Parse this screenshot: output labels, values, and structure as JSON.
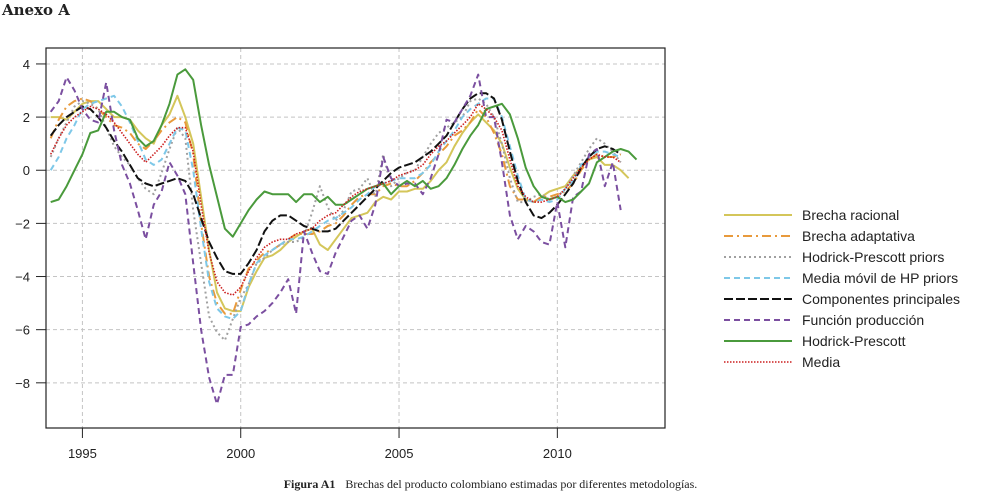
{
  "header": {
    "annex_title": "Anexo A"
  },
  "caption": {
    "label": "Figura A1",
    "text": "Brechas del producto colombiano estimadas por diferentes metodologías."
  },
  "chart_data": {
    "type": "line",
    "title": "",
    "xlabel": "",
    "ylabel": "",
    "xlim": [
      1993.85,
      2013.4
    ],
    "ylim": [
      -9.7,
      4.6
    ],
    "x_ticks": [
      1995,
      2000,
      2005,
      2010
    ],
    "x_tick_labels": [
      "1995",
      "2000",
      "2005",
      "2010"
    ],
    "y_ticks": [
      4,
      2,
      0,
      -2,
      -4,
      -6,
      -8
    ],
    "y_tick_labels": [
      "4",
      "2",
      "0",
      "−2",
      "−4",
      "−6",
      "−8"
    ],
    "grid": true,
    "legend_position": "right",
    "x_start": 1994.0,
    "x_step": 0.25,
    "series": [
      {
        "name": "Brecha racional",
        "color": "#d4c65a",
        "style": "solid",
        "values": [
          2.0,
          2.0,
          1.9,
          2.2,
          2.5,
          2.6,
          2.6,
          2.3,
          2.0,
          2.0,
          1.9,
          1.5,
          1.2,
          1.0,
          1.7,
          2.1,
          2.8,
          2.0,
          1.0,
          -1.0,
          -3.0,
          -4.6,
          -5.2,
          -5.3,
          -5.3,
          -4.4,
          -3.8,
          -3.3,
          -3.2,
          -3.0,
          -2.7,
          -2.5,
          -2.3,
          -2.2,
          -2.8,
          -3.0,
          -2.6,
          -2.2,
          -1.8,
          -1.7,
          -1.6,
          -1.2,
          -1.0,
          -1.1,
          -0.8,
          -0.8,
          -0.7,
          -0.7,
          -0.4,
          0.0,
          0.3,
          0.9,
          1.4,
          1.8,
          2.1,
          1.8,
          1.5,
          1.0,
          0.1,
          -0.7,
          -1.1,
          -1.2,
          -1.0,
          -0.8,
          -0.7,
          -0.6,
          -0.2,
          0.1,
          0.4,
          0.5,
          0.2,
          0.2,
          0.0,
          -0.3
        ]
      },
      {
        "name": "Brecha adaptativa",
        "color": "#e89a3c",
        "style": "dashdot",
        "values": [
          1.2,
          1.9,
          2.4,
          2.6,
          2.7,
          2.6,
          2.3,
          2.0,
          1.7,
          1.6,
          1.4,
          1.0,
          0.8,
          1.1,
          1.5,
          1.8,
          2.0,
          1.8,
          0.6,
          -2.0,
          -4.0,
          -5.0,
          -5.4,
          -5.4,
          -4.5,
          -3.7,
          -3.4,
          -3.1,
          -3.0,
          -2.8,
          -2.6,
          -2.4,
          -2.4,
          -2.4,
          -2.3,
          -2.1,
          -2.0,
          -1.7,
          -1.3,
          -1.0,
          -0.9,
          -0.9,
          -0.6,
          -0.5,
          -0.6,
          -0.6,
          -0.4,
          -0.1,
          0.3,
          0.6,
          0.9,
          1.3,
          1.5,
          1.8,
          2.3,
          2.0,
          1.4,
          0.6,
          -0.6,
          -1.1,
          -1.1,
          -1.2,
          -1.0,
          -1.0,
          -0.9,
          -0.8,
          -0.5,
          0.0,
          0.4,
          0.6,
          0.5,
          0.5,
          0.6
        ]
      },
      {
        "name": "Hodrick-Prescott priors",
        "color": "#a0a0a0",
        "style": "dotted",
        "values": [
          0.5,
          1.2,
          1.8,
          2.4,
          2.6,
          2.5,
          2.3,
          1.6,
          0.9,
          0.5,
          0.2,
          -0.3,
          -0.7,
          -0.9,
          -0.1,
          0.8,
          1.6,
          1.2,
          -1.5,
          -3.5,
          -5.5,
          -6.1,
          -6.4,
          -5.6,
          -4.8,
          -4.3,
          -3.5,
          -3.3,
          -3.0,
          -2.8,
          -2.7,
          -2.7,
          -2.5,
          -1.6,
          -0.6,
          -1.4,
          -1.9,
          -1.5,
          -0.8,
          -0.7,
          -0.3,
          -1.0,
          0.6,
          -0.6,
          -0.3,
          -0.1,
          0.0,
          0.5,
          1.0,
          1.4,
          1.6,
          1.8,
          2.0,
          2.6,
          2.7,
          2.5,
          2.0,
          1.0,
          -0.3,
          -1.2,
          -1.2,
          -1.0,
          -0.9,
          -1.1,
          -1.0,
          -0.7,
          -0.2,
          0.3,
          0.8,
          1.2,
          1.0,
          0.7,
          0.3
        ]
      },
      {
        "name": "Media móvil de HP priors",
        "color": "#7ec8e8",
        "style": "dashed",
        "values": [
          0.0,
          0.5,
          1.2,
          1.7,
          2.3,
          2.5,
          2.6,
          2.7,
          2.8,
          2.4,
          1.8,
          1.1,
          0.4,
          0.2,
          0.4,
          1.0,
          1.6,
          1.5,
          0.0,
          -2.2,
          -4.2,
          -5.2,
          -5.5,
          -5.6,
          -5.3,
          -4.3,
          -3.5,
          -3.2,
          -3.0,
          -2.8,
          -2.6,
          -2.6,
          -2.5,
          -2.3,
          -2.1,
          -1.9,
          -1.8,
          -1.6,
          -1.4,
          -1.1,
          -0.9,
          -0.6,
          -0.5,
          -0.4,
          -0.3,
          -0.3,
          -0.3,
          -0.1,
          0.2,
          0.7,
          1.1,
          1.5,
          2.0,
          2.3,
          2.5,
          2.7,
          2.7,
          2.0,
          0.9,
          -0.2,
          -1.1,
          -1.2,
          -1.1,
          -1.2,
          -1.1,
          -0.7,
          -0.4,
          0.2,
          0.5,
          0.7,
          0.7,
          0.6,
          0.5
        ]
      },
      {
        "name": "Componentes principales",
        "color": "#111111",
        "style": "longdash",
        "values": [
          1.3,
          1.7,
          2.0,
          2.2,
          2.4,
          2.3,
          2.0,
          1.6,
          1.1,
          0.7,
          0.2,
          -0.3,
          -0.5,
          -0.6,
          -0.5,
          -0.4,
          -0.3,
          -0.4,
          -0.9,
          -1.8,
          -2.7,
          -3.3,
          -3.8,
          -3.9,
          -3.9,
          -3.5,
          -3.0,
          -2.3,
          -1.9,
          -1.7,
          -1.7,
          -1.9,
          -2.1,
          -2.2,
          -2.3,
          -2.3,
          -2.2,
          -1.9,
          -1.6,
          -1.3,
          -1.0,
          -0.7,
          -0.4,
          -0.1,
          0.1,
          0.2,
          0.3,
          0.5,
          0.7,
          1.0,
          1.3,
          1.8,
          2.3,
          2.7,
          2.9,
          2.9,
          2.7,
          1.9,
          0.7,
          -0.4,
          -1.2,
          -1.7,
          -1.8,
          -1.6,
          -1.3,
          -0.9,
          -0.5,
          0.1,
          0.5,
          0.8,
          0.9,
          0.8,
          0.6
        ]
      },
      {
        "name": "Función producción",
        "color": "#7b4fa0",
        "style": "dashed",
        "values": [
          2.2,
          2.6,
          3.5,
          3.0,
          2.3,
          1.9,
          1.8,
          3.3,
          1.5,
          0.2,
          -0.5,
          -1.5,
          -2.6,
          -1.3,
          -0.8,
          0.3,
          -0.2,
          -0.9,
          -3.5,
          -6.0,
          -7.8,
          -8.8,
          -7.7,
          -7.7,
          -5.9,
          -5.8,
          -5.5,
          -5.3,
          -5.0,
          -4.6,
          -4.1,
          -5.4,
          -2.3,
          -3.1,
          -3.8,
          -3.9,
          -3.1,
          -2.5,
          -1.9,
          -1.7,
          -2.2,
          -1.3,
          0.5,
          -0.3,
          -0.6,
          -0.5,
          -0.5,
          -0.9,
          -0.3,
          0.6,
          1.9,
          1.8,
          2.3,
          2.8,
          3.6,
          2.0,
          2.0,
          0.3,
          -1.7,
          -2.6,
          -2.1,
          -2.3,
          -2.7,
          -2.8,
          -1.2,
          -2.9,
          -1.0,
          -0.8,
          0.6,
          0.8,
          -0.6,
          0.3,
          -1.5
        ]
      },
      {
        "name": "Hodrick-Prescott",
        "color": "#4a9a3c",
        "style": "solid",
        "values": [
          -1.2,
          -1.1,
          -0.6,
          0.0,
          0.6,
          1.4,
          1.5,
          2.2,
          2.2,
          2.0,
          1.9,
          1.2,
          0.9,
          1.1,
          1.7,
          2.5,
          3.6,
          3.8,
          3.4,
          1.7,
          0.2,
          -1.0,
          -2.2,
          -2.5,
          -2.0,
          -1.5,
          -1.1,
          -0.8,
          -0.9,
          -0.9,
          -0.9,
          -1.2,
          -0.9,
          -0.9,
          -1.2,
          -1.0,
          -1.3,
          -1.3,
          -1.1,
          -0.9,
          -0.7,
          -0.6,
          -0.5,
          -0.9,
          -0.6,
          -0.4,
          -0.6,
          -0.4,
          -0.7,
          -0.6,
          -0.3,
          0.2,
          0.8,
          1.3,
          1.7,
          2.3,
          2.4,
          2.5,
          2.1,
          1.2,
          0.1,
          -0.6,
          -1.0,
          -1.1,
          -1.0,
          -1.2,
          -1.1,
          -0.8,
          -0.5,
          0.3,
          0.5,
          0.7,
          0.8,
          0.7,
          0.4
        ]
      },
      {
        "name": "Media",
        "color": "#cc1f1f",
        "style": "finedot",
        "values": [
          0.6,
          1.2,
          1.7,
          2.0,
          2.2,
          2.4,
          2.3,
          2.1,
          1.8,
          1.4,
          1.0,
          0.6,
          0.3,
          0.6,
          0.9,
          1.3,
          1.6,
          1.6,
          0.7,
          -1.3,
          -3.1,
          -4.2,
          -4.6,
          -4.7,
          -4.4,
          -3.8,
          -3.3,
          -2.9,
          -2.7,
          -2.6,
          -2.6,
          -2.4,
          -2.3,
          -2.2,
          -1.9,
          -1.7,
          -1.6,
          -1.3,
          -1.0,
          -0.8,
          -0.7,
          -0.6,
          -0.5,
          -0.4,
          -0.2,
          -0.1,
          0.0,
          0.2,
          0.6,
          0.9,
          1.1,
          1.4,
          1.7,
          2.0,
          2.5,
          2.3,
          2.0,
          1.5,
          0.4,
          -0.6,
          -1.0,
          -1.2,
          -1.2,
          -1.1,
          -1.0,
          -0.7,
          -0.3,
          0.1,
          0.4,
          0.6,
          0.5,
          0.5,
          0.3
        ]
      }
    ]
  }
}
